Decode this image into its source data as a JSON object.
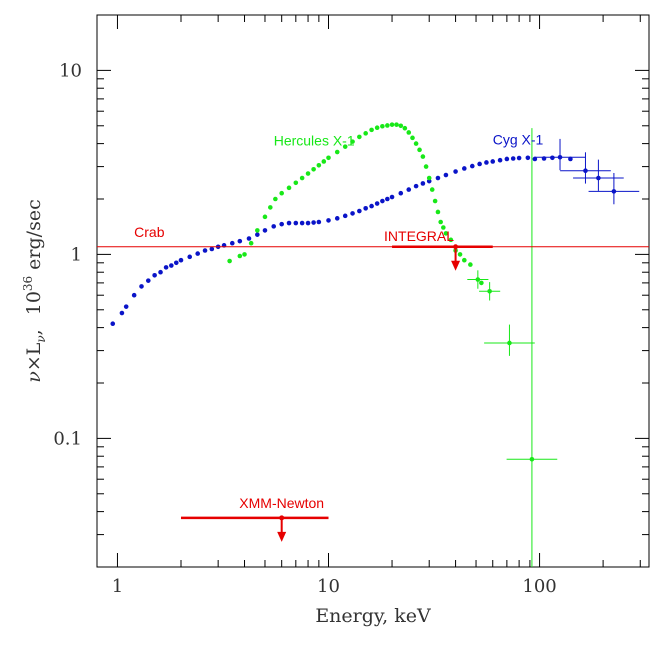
{
  "chart_data": {
    "type": "scatter",
    "xlabel": "Energy, keV",
    "ylabel": {
      "nu": "ν",
      "times": "×L",
      "sub": "ν",
      "comma": ",",
      "ten": "10",
      "exp": "36",
      "unit": "erg/sec"
    },
    "x_scale": "log",
    "y_scale": "log",
    "xlim": [
      0.8,
      330
    ],
    "ylim": [
      0.02,
      20
    ],
    "grid": false,
    "x_ticks": [
      {
        "value": 1,
        "label": "1"
      },
      {
        "value": 10,
        "label": "10"
      },
      {
        "value": 100,
        "label": "100"
      }
    ],
    "y_ticks": [
      {
        "value": 0.1,
        "label": "0.1"
      },
      {
        "value": 1,
        "label": "1"
      },
      {
        "value": 10,
        "label": "10"
      }
    ],
    "colors": {
      "cyg": "#0a14c8",
      "herc": "#18e818",
      "crab": "#e60000",
      "upper_limit": "#e60000"
    },
    "crab_line": {
      "label": "Crab",
      "value": 1.1
    },
    "upper_limits": [
      {
        "label": "XMM-Newton",
        "x": 6,
        "y": 0.037,
        "x_range": [
          2,
          10
        ]
      },
      {
        "label": "INTEGRAL",
        "x": 40,
        "y": 1.1,
        "x_range": [
          20,
          60
        ]
      }
    ],
    "series": [
      {
        "name": "Cyg X-1",
        "points": [
          [
            0.95,
            0.42
          ],
          [
            1.05,
            0.48
          ],
          [
            1.1,
            0.52
          ],
          [
            1.2,
            0.6
          ],
          [
            1.3,
            0.67
          ],
          [
            1.4,
            0.72
          ],
          [
            1.5,
            0.77
          ],
          [
            1.6,
            0.8
          ],
          [
            1.7,
            0.85
          ],
          [
            1.8,
            0.87
          ],
          [
            1.9,
            0.9
          ],
          [
            2.0,
            0.93
          ],
          [
            2.2,
            0.97
          ],
          [
            2.4,
            1.01
          ],
          [
            2.6,
            1.05
          ],
          [
            2.8,
            1.07
          ],
          [
            3.0,
            1.1
          ],
          [
            3.2,
            1.12
          ],
          [
            3.5,
            1.15
          ],
          [
            3.8,
            1.18
          ],
          [
            4.2,
            1.22
          ],
          [
            4.6,
            1.28
          ],
          [
            5.0,
            1.35
          ],
          [
            5.5,
            1.42
          ],
          [
            6.0,
            1.46
          ],
          [
            6.5,
            1.48
          ],
          [
            7.0,
            1.48
          ],
          [
            7.5,
            1.48
          ],
          [
            8.0,
            1.48
          ],
          [
            8.5,
            1.49
          ],
          [
            9.0,
            1.5
          ],
          [
            10,
            1.53
          ],
          [
            11,
            1.57
          ],
          [
            12,
            1.62
          ],
          [
            13,
            1.67
          ],
          [
            14,
            1.72
          ],
          [
            15,
            1.78
          ],
          [
            16,
            1.83
          ],
          [
            17,
            1.89
          ],
          [
            18,
            1.95
          ],
          [
            19,
            2.0
          ],
          [
            20,
            2.05
          ],
          [
            22,
            2.15
          ],
          [
            24,
            2.25
          ],
          [
            26,
            2.35
          ],
          [
            28,
            2.43
          ],
          [
            30,
            2.5
          ],
          [
            33,
            2.6
          ],
          [
            36,
            2.7
          ],
          [
            40,
            2.82
          ],
          [
            44,
            2.93
          ],
          [
            48,
            3.02
          ],
          [
            52,
            3.1
          ],
          [
            56,
            3.16
          ],
          [
            60,
            3.2
          ],
          [
            65,
            3.25
          ],
          [
            70,
            3.3
          ],
          [
            75,
            3.32
          ],
          [
            80,
            3.34
          ],
          [
            88,
            3.35
          ],
          [
            95,
            3.3
          ],
          [
            105,
            3.32
          ],
          [
            115,
            3.35
          ],
          [
            125,
            3.37
          ],
          [
            140,
            3.3
          ],
          [
            165,
            2.85
          ],
          [
            190,
            2.6
          ],
          [
            225,
            2.2
          ]
        ],
        "error_points": [
          [
            125,
            3.37
          ],
          [
            165,
            2.85
          ],
          [
            190,
            2.6
          ],
          [
            225,
            2.2
          ]
        ]
      },
      {
        "name": "Hercules X-1",
        "points": [
          [
            3.4,
            0.92
          ],
          [
            3.8,
            0.98
          ],
          [
            4.0,
            1.0
          ],
          [
            4.3,
            1.15
          ],
          [
            4.6,
            1.35
          ],
          [
            5.0,
            1.6
          ],
          [
            5.3,
            1.8
          ],
          [
            5.6,
            2.0
          ],
          [
            6.0,
            2.15
          ],
          [
            6.5,
            2.3
          ],
          [
            7.0,
            2.45
          ],
          [
            7.5,
            2.6
          ],
          [
            8.0,
            2.75
          ],
          [
            8.5,
            2.9
          ],
          [
            9.0,
            3.05
          ],
          [
            9.5,
            3.2
          ],
          [
            10,
            3.35
          ],
          [
            11,
            3.6
          ],
          [
            12,
            3.85
          ],
          [
            13,
            4.1
          ],
          [
            14,
            4.35
          ],
          [
            15,
            4.55
          ],
          [
            16,
            4.75
          ],
          [
            17,
            4.88
          ],
          [
            18,
            4.97
          ],
          [
            19,
            5.02
          ],
          [
            20,
            5.07
          ],
          [
            21,
            5.07
          ],
          [
            22,
            5.0
          ],
          [
            23,
            4.85
          ],
          [
            24,
            4.6
          ],
          [
            25,
            4.3
          ],
          [
            26,
            4.0
          ],
          [
            27,
            3.7
          ],
          [
            28,
            3.4
          ],
          [
            29,
            3.0
          ],
          [
            30,
            2.6
          ],
          [
            31,
            2.25
          ],
          [
            32,
            1.95
          ],
          [
            33,
            1.7
          ],
          [
            34,
            1.5
          ],
          [
            35,
            1.4
          ],
          [
            36,
            1.3
          ],
          [
            38,
            1.2
          ],
          [
            40,
            1.05
          ],
          [
            42,
            1.0
          ],
          [
            44,
            0.93
          ],
          [
            47,
            0.88
          ],
          [
            51,
            0.73
          ],
          [
            53,
            0.7
          ],
          [
            58,
            0.63
          ],
          [
            72,
            0.33
          ],
          [
            92,
            0.077
          ]
        ],
        "error_points": [
          [
            51,
            0.73
          ],
          [
            58,
            0.63
          ],
          [
            72,
            0.33
          ],
          [
            92,
            0.077
          ]
        ]
      }
    ]
  }
}
